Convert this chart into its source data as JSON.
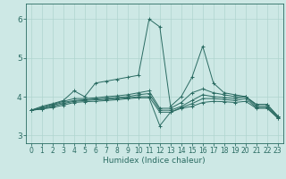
{
  "xlabel": "Humidex (Indice chaleur)",
  "xlim": [
    -0.5,
    23.5
  ],
  "ylim": [
    2.8,
    6.4
  ],
  "yticks": [
    3,
    4,
    5,
    6
  ],
  "xticks": [
    0,
    1,
    2,
    3,
    4,
    5,
    6,
    7,
    8,
    9,
    10,
    11,
    12,
    13,
    14,
    15,
    16,
    17,
    18,
    19,
    20,
    21,
    22,
    23
  ],
  "bg_color": "#cde8e5",
  "line_color": "#2a6b62",
  "grid_color": "#afd4cf",
  "lines": [
    {
      "x": [
        0,
        1,
        2,
        3,
        4,
        5,
        6,
        7,
        8,
        9,
        10,
        11,
        12,
        13,
        14,
        15,
        16,
        17,
        18,
        19,
        20,
        21,
        22,
        23
      ],
      "y": [
        3.65,
        3.75,
        3.82,
        3.9,
        4.15,
        4.0,
        4.35,
        4.4,
        4.45,
        4.5,
        4.55,
        6.0,
        5.8,
        3.75,
        4.0,
        4.5,
        5.3,
        4.35,
        4.1,
        4.05,
        4.0,
        3.8,
        3.8,
        3.5
      ]
    },
    {
      "x": [
        0,
        1,
        2,
        3,
        4,
        5,
        6,
        7,
        8,
        9,
        10,
        11,
        12,
        13,
        14,
        15,
        16,
        17,
        18,
        19,
        20,
        21,
        22,
        23
      ],
      "y": [
        3.65,
        3.72,
        3.8,
        3.88,
        3.95,
        3.95,
        3.97,
        4.0,
        4.02,
        4.05,
        4.1,
        4.15,
        3.7,
        3.7,
        3.85,
        4.1,
        4.2,
        4.1,
        4.05,
        4.0,
        4.0,
        3.8,
        3.8,
        3.5
      ]
    },
    {
      "x": [
        0,
        1,
        2,
        3,
        4,
        5,
        6,
        7,
        8,
        9,
        10,
        11,
        12,
        13,
        14,
        15,
        16,
        17,
        18,
        19,
        20,
        21,
        22,
        23
      ],
      "y": [
        3.65,
        3.7,
        3.78,
        3.85,
        3.9,
        3.92,
        3.94,
        3.96,
        3.98,
        4.0,
        4.05,
        4.08,
        3.65,
        3.65,
        3.75,
        3.9,
        4.05,
        4.0,
        3.98,
        3.95,
        4.0,
        3.75,
        3.75,
        3.48
      ]
    },
    {
      "x": [
        0,
        1,
        2,
        3,
        4,
        5,
        6,
        7,
        8,
        9,
        10,
        11,
        12,
        13,
        14,
        15,
        16,
        17,
        18,
        19,
        20,
        21,
        22,
        23
      ],
      "y": [
        3.65,
        3.68,
        3.75,
        3.82,
        3.88,
        3.9,
        3.92,
        3.93,
        3.95,
        3.97,
        4.0,
        4.0,
        3.6,
        3.6,
        3.72,
        3.82,
        3.95,
        3.95,
        3.93,
        3.9,
        3.95,
        3.72,
        3.72,
        3.45
      ]
    },
    {
      "x": [
        0,
        1,
        2,
        3,
        4,
        5,
        6,
        7,
        8,
        9,
        10,
        11,
        12,
        13,
        14,
        15,
        16,
        17,
        18,
        19,
        20,
        21,
        22,
        23
      ],
      "y": [
        3.65,
        3.68,
        3.72,
        3.78,
        3.85,
        3.87,
        3.88,
        3.9,
        3.92,
        3.95,
        3.97,
        3.97,
        3.25,
        3.6,
        3.7,
        3.75,
        3.85,
        3.88,
        3.87,
        3.85,
        3.88,
        3.7,
        3.7,
        3.45
      ]
    }
  ]
}
